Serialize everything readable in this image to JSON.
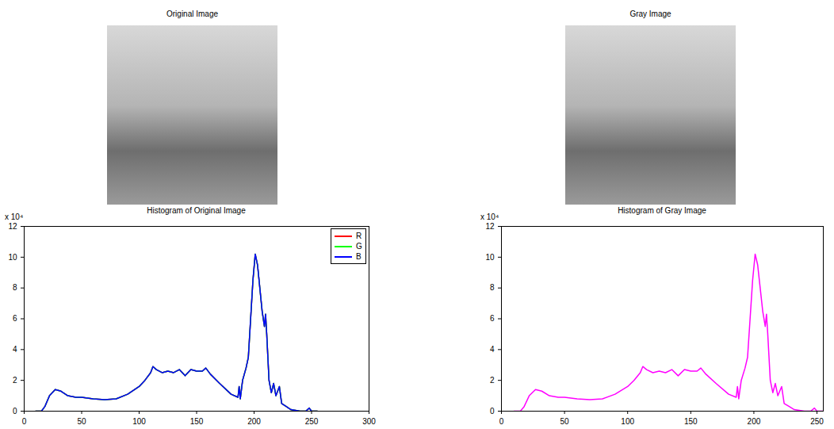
{
  "chart_data": [
    {
      "type": "image",
      "title": "Original Image"
    },
    {
      "type": "image",
      "title": "Gray Image"
    },
    {
      "type": "line",
      "title": "Histogram of Original Image",
      "annotations": [
        "x 10⁴"
      ],
      "x": [
        10,
        15,
        18,
        22,
        27,
        32,
        38,
        45,
        50,
        60,
        70,
        80,
        90,
        100,
        105,
        110,
        112,
        115,
        120,
        125,
        130,
        135,
        140,
        145,
        150,
        155,
        158,
        162,
        170,
        180,
        186,
        187,
        188,
        190,
        193,
        195,
        197,
        199,
        201,
        203,
        205,
        207,
        209,
        210,
        211,
        213,
        215,
        217,
        219,
        222,
        224,
        228,
        232,
        240,
        245,
        248,
        250,
        255
      ],
      "series": [
        {
          "name": "R",
          "color": "#ff0000",
          "values": [
            0,
            0,
            0.3,
            1.0,
            1.4,
            1.3,
            1.0,
            0.9,
            0.9,
            0.8,
            0.75,
            0.8,
            1.1,
            1.6,
            2.0,
            2.5,
            2.9,
            2.7,
            2.5,
            2.6,
            2.5,
            2.7,
            2.3,
            2.7,
            2.6,
            2.6,
            2.8,
            2.4,
            1.8,
            1.1,
            0.9,
            1.6,
            0.8,
            2.0,
            2.8,
            3.5,
            6.0,
            8.5,
            10.2,
            9.5,
            8.0,
            6.5,
            5.5,
            6.3,
            5.0,
            2.0,
            1.2,
            1.8,
            1.0,
            1.6,
            0.5,
            0.3,
            0.1,
            0,
            0,
            0.2,
            0,
            0
          ]
        },
        {
          "name": "G",
          "color": "#00ff00",
          "values": [
            0,
            0,
            0.3,
            1.0,
            1.4,
            1.3,
            1.0,
            0.9,
            0.9,
            0.8,
            0.75,
            0.8,
            1.1,
            1.6,
            2.0,
            2.5,
            2.9,
            2.7,
            2.5,
            2.6,
            2.5,
            2.7,
            2.3,
            2.7,
            2.6,
            2.6,
            2.8,
            2.4,
            1.8,
            1.1,
            0.9,
            1.6,
            0.8,
            2.0,
            2.8,
            3.5,
            6.0,
            8.5,
            10.2,
            9.5,
            8.0,
            6.5,
            5.5,
            6.3,
            5.0,
            2.0,
            1.2,
            1.8,
            1.0,
            1.6,
            0.5,
            0.3,
            0.1,
            0,
            0,
            0.2,
            0,
            0
          ]
        },
        {
          "name": "B",
          "color": "#0000ff",
          "values": [
            0,
            0,
            0.3,
            1.0,
            1.4,
            1.3,
            1.0,
            0.9,
            0.9,
            0.8,
            0.75,
            0.8,
            1.1,
            1.6,
            2.0,
            2.5,
            2.9,
            2.7,
            2.5,
            2.6,
            2.5,
            2.7,
            2.3,
            2.7,
            2.6,
            2.6,
            2.8,
            2.4,
            1.8,
            1.1,
            0.9,
            1.6,
            0.8,
            2.0,
            2.8,
            3.5,
            6.0,
            8.5,
            10.2,
            9.5,
            8.0,
            6.5,
            5.5,
            6.3,
            5.0,
            2.0,
            1.2,
            1.8,
            1.0,
            1.6,
            0.5,
            0.3,
            0.1,
            0,
            0,
            0.2,
            0,
            0
          ]
        }
      ],
      "legend": "northeast",
      "xlim": [
        0,
        300
      ],
      "xticks": [
        0,
        50,
        100,
        150,
        200,
        250,
        300
      ],
      "ylim": [
        0,
        12
      ],
      "yticks": [
        0,
        2,
        4,
        6,
        8,
        10,
        12
      ]
    },
    {
      "type": "line",
      "title": "Histogram of Gray Image",
      "annotations": [
        "x 10⁴"
      ],
      "color": "#ff00ff",
      "x": [
        10,
        15,
        18,
        22,
        27,
        32,
        38,
        45,
        50,
        60,
        70,
        80,
        90,
        100,
        105,
        110,
        112,
        115,
        120,
        125,
        130,
        135,
        140,
        145,
        150,
        155,
        158,
        162,
        170,
        180,
        186,
        187,
        188,
        190,
        193,
        195,
        197,
        199,
        201,
        203,
        205,
        207,
        209,
        210,
        211,
        213,
        215,
        217,
        219,
        222,
        224,
        228,
        232,
        240,
        245,
        248,
        250,
        255
      ],
      "values": [
        0,
        0,
        0.3,
        1.0,
        1.4,
        1.3,
        1.0,
        0.9,
        0.9,
        0.8,
        0.75,
        0.8,
        1.1,
        1.6,
        2.0,
        2.5,
        2.9,
        2.7,
        2.5,
        2.6,
        2.5,
        2.7,
        2.3,
        2.7,
        2.6,
        2.6,
        2.8,
        2.4,
        1.8,
        1.1,
        0.9,
        1.6,
        0.8,
        2.0,
        2.8,
        3.5,
        6.0,
        8.5,
        10.2,
        9.5,
        8.0,
        6.5,
        5.5,
        6.3,
        5.0,
        2.0,
        1.2,
        1.8,
        1.0,
        1.6,
        0.5,
        0.3,
        0.1,
        0,
        0,
        0.2,
        0,
        0
      ],
      "xlim": [
        0,
        255
      ],
      "xticks": [
        0,
        50,
        100,
        150,
        200,
        250
      ],
      "ylim": [
        0,
        12
      ],
      "yticks": [
        0,
        2,
        4,
        6,
        8,
        10,
        12
      ]
    }
  ]
}
